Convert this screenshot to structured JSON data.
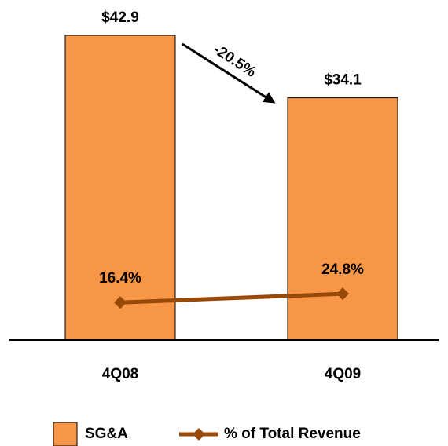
{
  "chart_data": {
    "type": "bar",
    "categories": [
      "4Q08",
      "4Q09"
    ],
    "ylim": [
      0,
      45
    ],
    "y2lim": [
      -20,
      290
    ],
    "series": [
      {
        "name": "SG&A",
        "type": "bar",
        "color": "#f79646",
        "values": [
          42.9,
          34.1
        ],
        "value_labels": [
          "$42.9",
          "$34.1"
        ]
      },
      {
        "name": "% of Total Revenue",
        "type": "line",
        "axis": "y2",
        "color": "#984807",
        "values": [
          16.4,
          24.8
        ],
        "value_labels": [
          "16.4%",
          "24.8%"
        ]
      }
    ],
    "annotation": "-20.5%",
    "legend": "bottom"
  }
}
